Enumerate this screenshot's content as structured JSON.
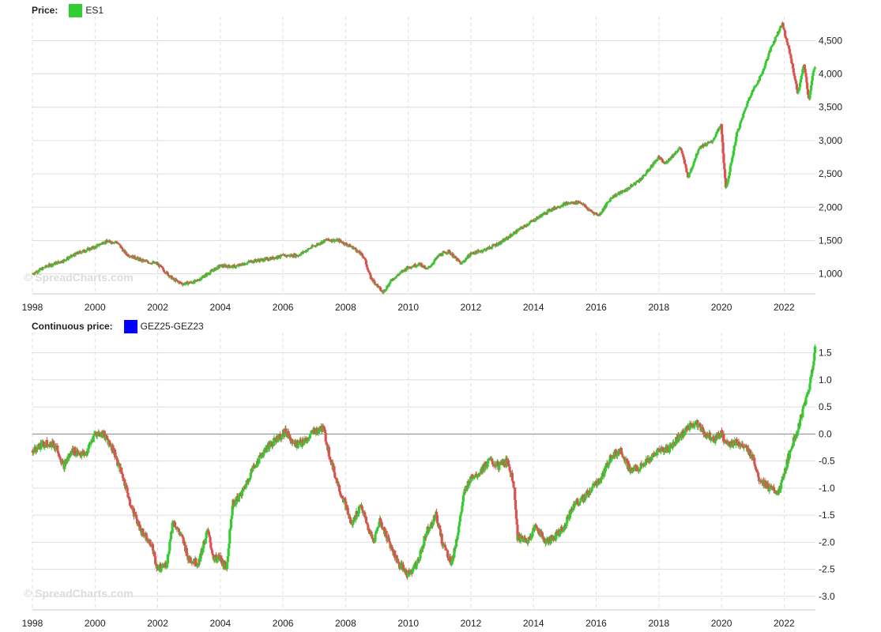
{
  "colors": {
    "up": "#33cc33",
    "down": "#d9534f",
    "grid": "#dddddd",
    "zero_line": "#888888"
  },
  "watermark": "© SpreadCharts.com",
  "chart_data": [
    {
      "type": "candlestick",
      "legend_label": "Price:",
      "series": [
        {
          "name": "ES1",
          "color": "#33cc33"
        }
      ],
      "x_ticks": [
        "1998",
        "2000",
        "2002",
        "2004",
        "2006",
        "2008",
        "2010",
        "2012",
        "2014",
        "2016",
        "2018",
        "2020",
        "2022"
      ],
      "y_ticks": [
        1000,
        1500,
        2000,
        2500,
        3000,
        3500,
        4000,
        4500
      ],
      "y_tick_labels": [
        "1,000",
        "1,500",
        "2,000",
        "2,500",
        "3,000",
        "3,500",
        "4,000",
        "4,500"
      ],
      "xlim": [
        1998,
        2023
      ],
      "ylim": [
        700,
        4800
      ],
      "grid": true,
      "y_axis_side": "right",
      "points": [
        [
          1998.0,
          1000
        ],
        [
          1998.5,
          1120
        ],
        [
          1999.0,
          1200
        ],
        [
          1999.5,
          1320
        ],
        [
          2000.0,
          1400
        ],
        [
          2000.3,
          1480
        ],
        [
          2000.7,
          1480
        ],
        [
          2001.0,
          1300
        ],
        [
          2001.5,
          1200
        ],
        [
          2002.0,
          1150
        ],
        [
          2002.5,
          920
        ],
        [
          2002.8,
          850
        ],
        [
          2003.2,
          880
        ],
        [
          2003.6,
          1000
        ],
        [
          2004.0,
          1120
        ],
        [
          2004.5,
          1110
        ],
        [
          2005.0,
          1190
        ],
        [
          2005.5,
          1220
        ],
        [
          2006.0,
          1270
        ],
        [
          2006.5,
          1280
        ],
        [
          2007.0,
          1420
        ],
        [
          2007.4,
          1510
        ],
        [
          2007.8,
          1500
        ],
        [
          2008.3,
          1380
        ],
        [
          2008.6,
          1250
        ],
        [
          2008.8,
          950
        ],
        [
          2009.2,
          720
        ],
        [
          2009.5,
          920
        ],
        [
          2010.0,
          1100
        ],
        [
          2010.4,
          1150
        ],
        [
          2010.6,
          1060
        ],
        [
          2011.0,
          1280
        ],
        [
          2011.3,
          1340
        ],
        [
          2011.7,
          1150
        ],
        [
          2012.0,
          1300
        ],
        [
          2012.5,
          1370
        ],
        [
          2013.0,
          1480
        ],
        [
          2013.5,
          1650
        ],
        [
          2014.0,
          1800
        ],
        [
          2014.5,
          1950
        ],
        [
          2015.0,
          2050
        ],
        [
          2015.5,
          2080
        ],
        [
          2015.8,
          1950
        ],
        [
          2016.1,
          1880
        ],
        [
          2016.5,
          2150
        ],
        [
          2017.0,
          2270
        ],
        [
          2017.5,
          2450
        ],
        [
          2018.0,
          2750
        ],
        [
          2018.2,
          2650
        ],
        [
          2018.7,
          2900
        ],
        [
          2018.95,
          2450
        ],
        [
          2019.3,
          2900
        ],
        [
          2019.7,
          2980
        ],
        [
          2020.0,
          3230
        ],
        [
          2020.15,
          2250
        ],
        [
          2020.5,
          3100
        ],
        [
          2020.9,
          3650
        ],
        [
          2021.3,
          4000
        ],
        [
          2021.6,
          4400
        ],
        [
          2021.95,
          4760
        ],
        [
          2022.2,
          4300
        ],
        [
          2022.45,
          3700
        ],
        [
          2022.65,
          4150
        ],
        [
          2022.8,
          3600
        ],
        [
          2022.95,
          4050
        ],
        [
          2023.0,
          4080
        ]
      ]
    },
    {
      "type": "candlestick",
      "legend_label": "Continuous price:",
      "series": [
        {
          "name": "GEZ25-GEZ23",
          "color": "#0000ff"
        }
      ],
      "x_ticks": [
        "1998",
        "2000",
        "2002",
        "2004",
        "2006",
        "2008",
        "2010",
        "2012",
        "2014",
        "2016",
        "2018",
        "2020",
        "2022"
      ],
      "y_ticks": [
        -3.0,
        -2.5,
        -2.0,
        -1.5,
        -1.0,
        -0.5,
        0.0,
        0.5,
        1.0,
        1.5
      ],
      "y_tick_labels": [
        "-3.0",
        "-2.5",
        "-2.0",
        "-1.5",
        "-1.0",
        "-0.5",
        "0.0",
        "0.5",
        "1.0",
        "1.5"
      ],
      "xlim": [
        1998,
        2023
      ],
      "ylim": [
        -3.25,
        1.8
      ],
      "grid": true,
      "y_axis_side": "right",
      "points": [
        [
          1998.0,
          -0.3
        ],
        [
          1998.5,
          -0.15
        ],
        [
          1998.8,
          -0.25
        ],
        [
          1999.0,
          -0.6
        ],
        [
          1999.3,
          -0.3
        ],
        [
          1999.7,
          -0.4
        ],
        [
          2000.0,
          0.0
        ],
        [
          2000.3,
          0.0
        ],
        [
          2000.6,
          -0.3
        ],
        [
          2000.9,
          -0.8
        ],
        [
          2001.2,
          -1.4
        ],
        [
          2001.5,
          -1.8
        ],
        [
          2001.8,
          -2.0
        ],
        [
          2002.0,
          -2.5
        ],
        [
          2002.3,
          -2.4
        ],
        [
          2002.5,
          -1.6
        ],
        [
          2002.8,
          -1.95
        ],
        [
          2003.0,
          -2.3
        ],
        [
          2003.3,
          -2.4
        ],
        [
          2003.6,
          -1.8
        ],
        [
          2003.8,
          -2.3
        ],
        [
          2004.0,
          -2.3
        ],
        [
          2004.2,
          -2.5
        ],
        [
          2004.4,
          -1.3
        ],
        [
          2004.7,
          -1.1
        ],
        [
          2005.0,
          -0.7
        ],
        [
          2005.3,
          -0.4
        ],
        [
          2005.6,
          -0.2
        ],
        [
          2005.9,
          -0.05
        ],
        [
          2006.1,
          0.05
        ],
        [
          2006.4,
          -0.2
        ],
        [
          2006.7,
          -0.15
        ],
        [
          2007.0,
          0.05
        ],
        [
          2007.3,
          0.1
        ],
        [
          2007.5,
          -0.4
        ],
        [
          2007.8,
          -1.0
        ],
        [
          2008.0,
          -1.3
        ],
        [
          2008.2,
          -1.7
        ],
        [
          2008.5,
          -1.3
        ],
        [
          2008.7,
          -1.7
        ],
        [
          2008.9,
          -2.0
        ],
        [
          2009.1,
          -1.6
        ],
        [
          2009.4,
          -2.0
        ],
        [
          2009.7,
          -2.4
        ],
        [
          2010.0,
          -2.6
        ],
        [
          2010.3,
          -2.4
        ],
        [
          2010.6,
          -1.8
        ],
        [
          2010.9,
          -1.5
        ],
        [
          2011.1,
          -2.0
        ],
        [
          2011.4,
          -2.4
        ],
        [
          2011.6,
          -1.8
        ],
        [
          2011.8,
          -1.1
        ],
        [
          2012.0,
          -0.8
        ],
        [
          2012.3,
          -0.7
        ],
        [
          2012.6,
          -0.5
        ],
        [
          2012.9,
          -0.6
        ],
        [
          2013.2,
          -0.5
        ],
        [
          2013.4,
          -1.0
        ],
        [
          2013.5,
          -1.9
        ],
        [
          2013.8,
          -2.0
        ],
        [
          2014.1,
          -1.7
        ],
        [
          2014.4,
          -2.0
        ],
        [
          2014.7,
          -1.9
        ],
        [
          2015.0,
          -1.7
        ],
        [
          2015.3,
          -1.3
        ],
        [
          2015.6,
          -1.2
        ],
        [
          2015.9,
          -1.0
        ],
        [
          2016.2,
          -0.8
        ],
        [
          2016.5,
          -0.4
        ],
        [
          2016.8,
          -0.3
        ],
        [
          2017.1,
          -0.7
        ],
        [
          2017.4,
          -0.6
        ],
        [
          2017.7,
          -0.5
        ],
        [
          2018.0,
          -0.3
        ],
        [
          2018.3,
          -0.3
        ],
        [
          2018.6,
          -0.1
        ],
        [
          2018.9,
          0.1
        ],
        [
          2019.2,
          0.2
        ],
        [
          2019.5,
          0.0
        ],
        [
          2019.8,
          -0.1
        ],
        [
          2020.0,
          0.0
        ],
        [
          2020.2,
          -0.2
        ],
        [
          2020.5,
          -0.15
        ],
        [
          2020.8,
          -0.3
        ],
        [
          2021.0,
          -0.4
        ],
        [
          2021.2,
          -0.8
        ],
        [
          2021.5,
          -1.0
        ],
        [
          2021.8,
          -1.1
        ],
        [
          2022.0,
          -0.8
        ],
        [
          2022.2,
          -0.3
        ],
        [
          2022.4,
          0.0
        ],
        [
          2022.6,
          0.4
        ],
        [
          2022.8,
          0.8
        ],
        [
          2023.0,
          1.55
        ]
      ]
    }
  ]
}
